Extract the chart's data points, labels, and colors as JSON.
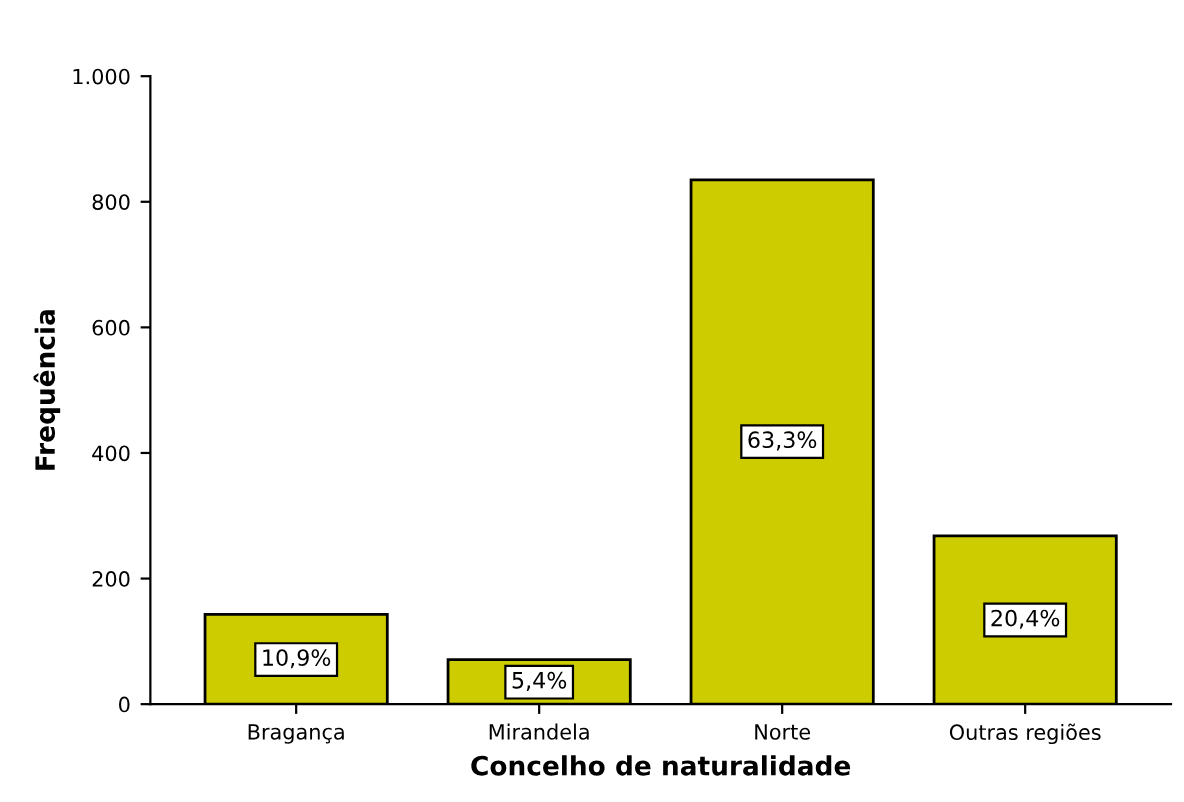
{
  "chart_data": {
    "type": "bar",
    "xlabel": "Concelho de naturalidade",
    "ylabel": "Frequência",
    "categories": [
      "Bragança",
      "Mirandela",
      "Norte",
      "Outras regiões"
    ],
    "values": [
      143,
      71,
      835,
      268
    ],
    "annotations": [
      {
        "text": "10,9%",
        "x": "Bragança",
        "y": 71
      },
      {
        "text": "5,4%",
        "x": "Mirandela",
        "y": 35
      },
      {
        "text": "63,3%",
        "x": "Norte",
        "y": 418
      },
      {
        "text": "20,4%",
        "x": "Outras regiões",
        "y": 134
      }
    ],
    "color": "#cccc00",
    "ylim": [
      0,
      1000
    ],
    "yticks": [
      0,
      200,
      400,
      600,
      800,
      {
        "value": 1000,
        "label": "1.000"
      }
    ],
    "grid": false
  }
}
